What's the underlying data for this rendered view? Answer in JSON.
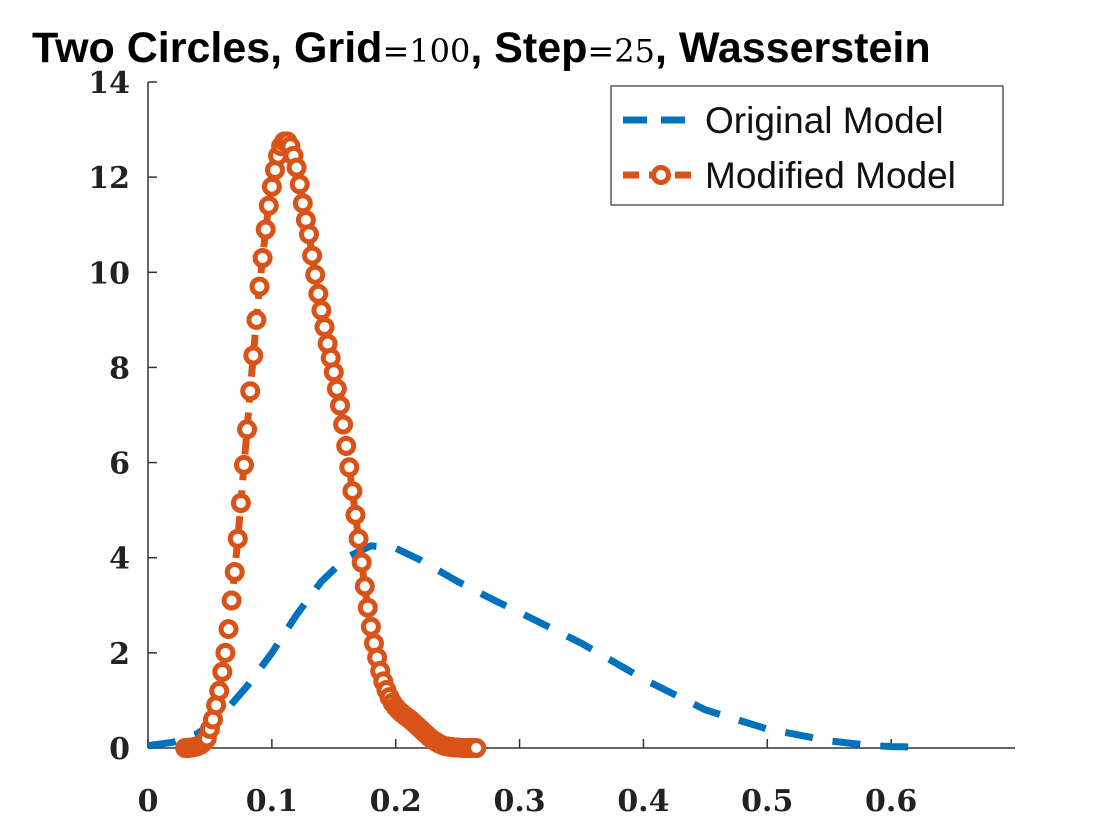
{
  "chart_data": {
    "type": "line",
    "title": "Two Circles, Grid=100, Step=25, Wasserstein",
    "title_parts": {
      "p1": "Two Circles, Grid",
      "p2": "=100",
      "p3": ", Step",
      "p4": "=25",
      "p5": ", Wasserstein"
    },
    "xlabel": "",
    "ylabel": "",
    "xlim": [
      0,
      0.7
    ],
    "ylim": [
      0,
      14
    ],
    "xticks": [
      0,
      0.1,
      0.2,
      0.3,
      0.4,
      0.5,
      0.6
    ],
    "xtick_labels": [
      "0",
      "0.1",
      "0.2",
      "0.3",
      "0.4",
      "0.5",
      "0.6"
    ],
    "yticks": [
      0,
      2,
      4,
      6,
      8,
      10,
      12,
      14
    ],
    "ytick_labels": [
      "0",
      "2",
      "4",
      "6",
      "8",
      "10",
      "12",
      "14"
    ],
    "grid": false,
    "legend_position": "top-right",
    "series": [
      {
        "name": "Original Model",
        "color": "#0072BD",
        "style": "dashed",
        "marker": "none",
        "x": [
          0,
          0.02,
          0.04,
          0.06,
          0.08,
          0.1,
          0.12,
          0.14,
          0.16,
          0.18,
          0.2,
          0.22,
          0.25,
          0.28,
          0.3,
          0.35,
          0.4,
          0.45,
          0.5,
          0.55,
          0.58,
          0.6,
          0.62
        ],
        "values": [
          0.05,
          0.12,
          0.3,
          0.7,
          1.3,
          2.0,
          2.8,
          3.5,
          4.0,
          4.25,
          4.2,
          3.95,
          3.5,
          3.1,
          2.85,
          2.2,
          1.45,
          0.8,
          0.4,
          0.15,
          0.06,
          0.03,
          0.02
        ]
      },
      {
        "name": "Modified Model",
        "color": "#D95319",
        "style": "dashed",
        "marker": "circle",
        "x": [
          0.03,
          0.0325,
          0.035,
          0.0375,
          0.04,
          0.0425,
          0.045,
          0.0475,
          0.05,
          0.0525,
          0.055,
          0.0575,
          0.06,
          0.0625,
          0.065,
          0.0675,
          0.07,
          0.0725,
          0.075,
          0.0775,
          0.08,
          0.0825,
          0.085,
          0.0875,
          0.09,
          0.0925,
          0.095,
          0.0975,
          0.1,
          0.1025,
          0.105,
          0.1075,
          0.11,
          0.1125,
          0.115,
          0.1175,
          0.12,
          0.1225,
          0.125,
          0.1275,
          0.13,
          0.1325,
          0.135,
          0.1375,
          0.14,
          0.1425,
          0.145,
          0.1475,
          0.15,
          0.1525,
          0.155,
          0.1575,
          0.16,
          0.1625,
          0.165,
          0.1675,
          0.17,
          0.1725,
          0.175,
          0.1775,
          0.18,
          0.1825,
          0.185,
          0.1875,
          0.19,
          0.1925,
          0.195,
          0.1975,
          0.2,
          0.2025,
          0.205,
          0.2075,
          0.21,
          0.2125,
          0.215,
          0.2175,
          0.22,
          0.2225,
          0.225,
          0.2275,
          0.23,
          0.2325,
          0.235,
          0.2375,
          0.24,
          0.2425,
          0.245,
          0.2475,
          0.25,
          0.2525,
          0.255,
          0.2575,
          0.26,
          0.2625,
          0.265
        ],
        "values": [
          0.0,
          0.0,
          0.01,
          0.02,
          0.04,
          0.07,
          0.12,
          0.2,
          0.4,
          0.6,
          0.9,
          1.2,
          1.6,
          2.0,
          2.5,
          3.1,
          3.7,
          4.4,
          5.15,
          5.95,
          6.7,
          7.5,
          8.25,
          9.0,
          9.7,
          10.3,
          10.9,
          11.4,
          11.8,
          12.15,
          12.45,
          12.65,
          12.75,
          12.75,
          12.65,
          12.45,
          12.2,
          11.85,
          11.45,
          11.1,
          10.8,
          10.35,
          9.95,
          9.55,
          9.2,
          8.85,
          8.5,
          8.2,
          7.9,
          7.55,
          7.2,
          6.8,
          6.35,
          5.9,
          5.4,
          4.9,
          4.4,
          3.9,
          3.4,
          2.95,
          2.55,
          2.2,
          1.9,
          1.62,
          1.4,
          1.22,
          1.07,
          0.95,
          0.86,
          0.79,
          0.73,
          0.68,
          0.63,
          0.58,
          0.52,
          0.46,
          0.4,
          0.34,
          0.28,
          0.22,
          0.17,
          0.13,
          0.09,
          0.06,
          0.04,
          0.03,
          0.02,
          0.01,
          0.01,
          0.005,
          0.0,
          0.0,
          0.0,
          0.0,
          0.0
        ]
      }
    ]
  }
}
